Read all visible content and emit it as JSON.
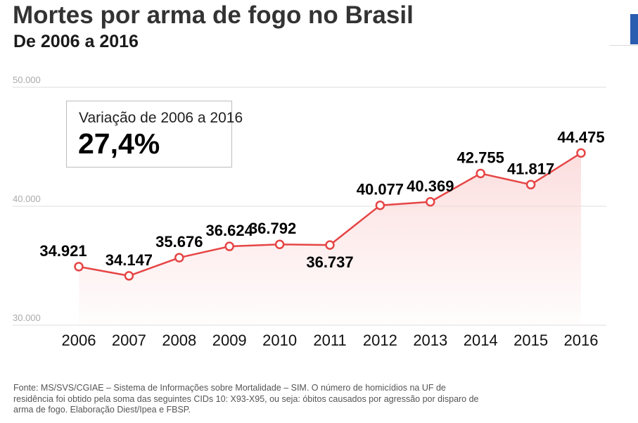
{
  "header": {
    "title": "Mortes por arma de fogo no Brasil",
    "subtitle": "De 2006 a 2016"
  },
  "variation": {
    "label": "Variação de 2006 a 2016",
    "value": "27,4%"
  },
  "chart_data": {
    "type": "line",
    "title": "Mortes por arma de fogo no Brasil",
    "subtitle": "De 2006 a 2016",
    "xlabel": "",
    "ylabel": "",
    "ylim": [
      30000,
      50000
    ],
    "yticks": [
      {
        "value": 30000,
        "label": "30.000"
      },
      {
        "value": 40000,
        "label": "40.000"
      },
      {
        "value": 50000,
        "label": "50.000"
      }
    ],
    "grid": true,
    "categories": [
      "2006",
      "2007",
      "2008",
      "2009",
      "2010",
      "2011",
      "2012",
      "2013",
      "2014",
      "2015",
      "2016"
    ],
    "series": [
      {
        "name": "Mortes por arma de fogo",
        "values": [
          34921,
          34147,
          35676,
          36624,
          36792,
          36737,
          40077,
          40369,
          42755,
          41817,
          44475
        ],
        "labels": [
          "34.921",
          "34.147",
          "35.676",
          "36.624",
          "36.792",
          "36.737",
          "40.077",
          "40.369",
          "42.755",
          "41.817",
          "44.475"
        ]
      }
    ],
    "colors": {
      "line": "#e64545",
      "fill": "#fbd3d3",
      "grid": "#dddddd",
      "axis_text": "#aaaaaa"
    }
  },
  "source": "Fonte: MS/SVS/CGIAE – Sistema de Informações sobre Mortalidade – SIM. O número de homicídios na UF de residência foi obtido pela soma das seguintes CIDs 10: X93-X95, ou seja: óbitos causados por agressão por disparo de arma de fogo. Elaboração Diest/Ipea e FBSP."
}
